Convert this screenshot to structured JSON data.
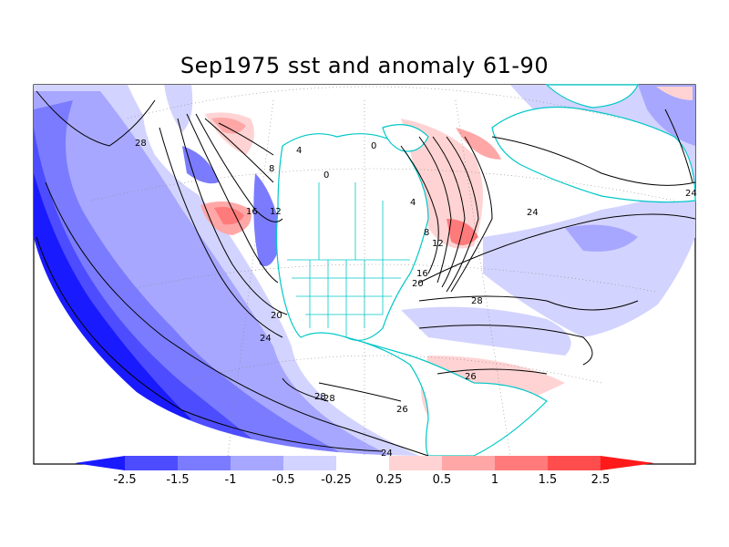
{
  "title": "Sep1975 sst and anomaly 61-90",
  "colors": {
    "neg_2_5": "#1a1aff",
    "neg_1_5": "#4d4dff",
    "neg_1": "#7b7bff",
    "neg_0_5": "#a7a7ff",
    "neg_0_25": "#d3d3ff",
    "neutral": "#ffffff",
    "pos_0_25": "#ffd3d3",
    "pos_0_5": "#ffa7a7",
    "pos_1": "#ff7b7b",
    "pos_1_5": "#ff4d4d",
    "pos_2_5": "#ff1a1a",
    "coast": "#00c8c8",
    "contour": "#000000"
  },
  "colorbar": {
    "labels": [
      "-2.5",
      "-1.5",
      "-1",
      "-0.5",
      "-0.25",
      "0.25",
      "0.5",
      "1",
      "1.5",
      "2.5"
    ]
  },
  "contour_labels": [
    "28",
    "28",
    "24",
    "24",
    "20",
    "20",
    "16",
    "16",
    "12",
    "12",
    "8",
    "8",
    "4",
    "4",
    "0",
    "0",
    "24",
    "26",
    "26",
    "28",
    "24",
    "28"
  ]
}
